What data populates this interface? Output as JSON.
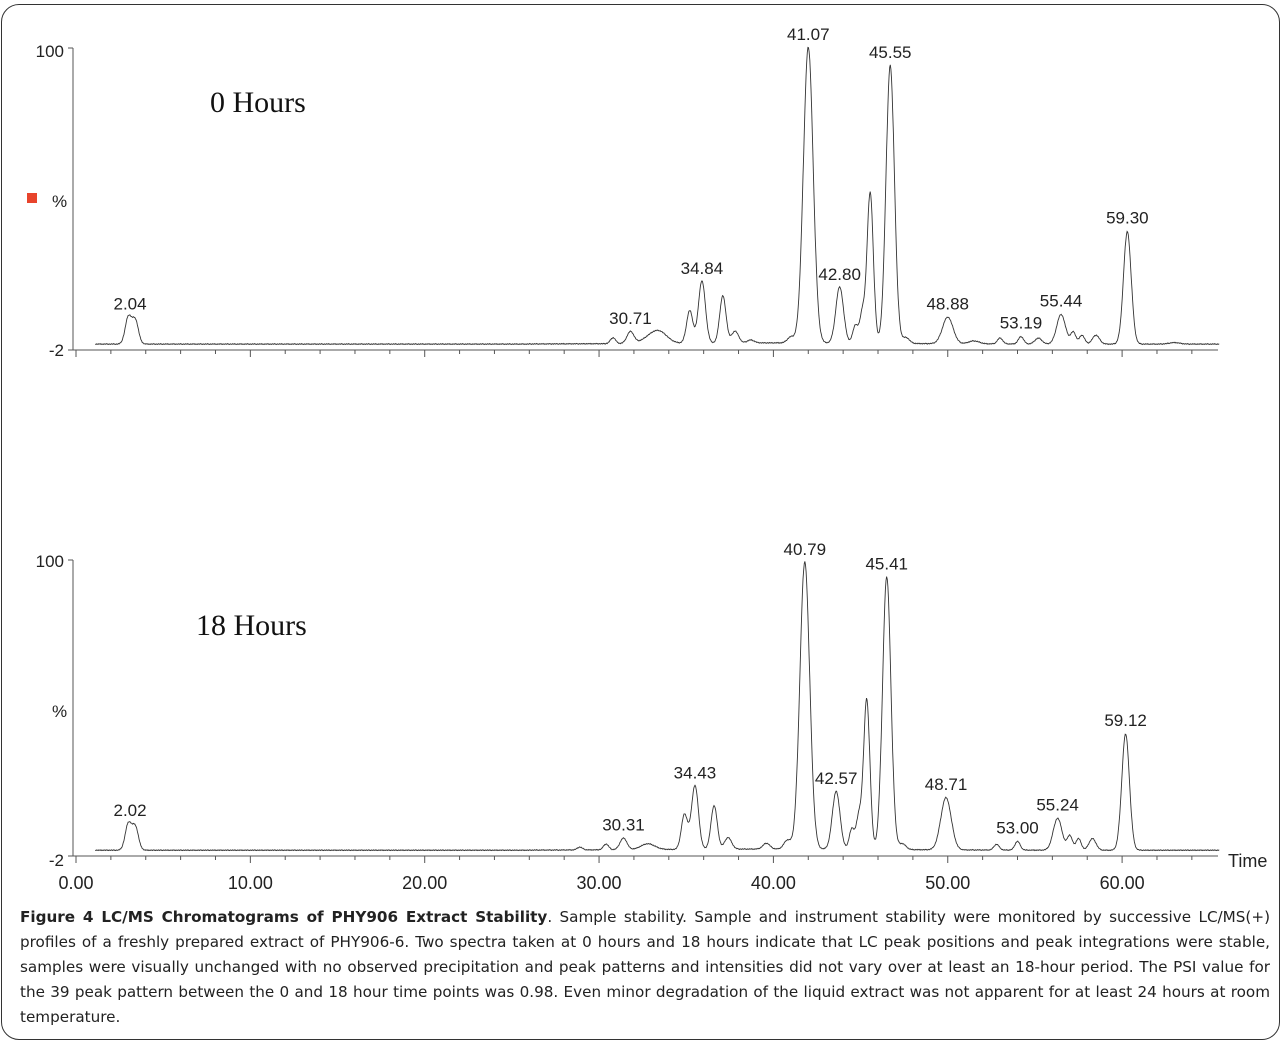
{
  "chart_data": [
    {
      "type": "line",
      "panel_label": "0 Hours",
      "ylabel": "%",
      "yticks": [
        "100",
        "-2"
      ],
      "ylim": [
        -2,
        100
      ],
      "xlim": [
        0,
        65.5
      ],
      "axis_color": "#555555",
      "trace_color": "#333333",
      "marker_color": "#e8442c",
      "peaks": [
        {
          "rt": 3.0,
          "height": 9,
          "width": 0.18
        },
        {
          "rt": 3.4,
          "height": 8,
          "width": 0.18
        },
        {
          "rt": 30.8,
          "height": 2,
          "width": 0.15
        },
        {
          "rt": 31.8,
          "height": 4,
          "width": 0.2
        },
        {
          "rt": 33.0,
          "height": 2,
          "width": 0.5
        },
        {
          "rt": 33.5,
          "height": 3,
          "width": 0.45
        },
        {
          "rt": 35.2,
          "height": 11,
          "width": 0.18
        },
        {
          "rt": 35.9,
          "height": 21,
          "width": 0.2
        },
        {
          "rt": 37.1,
          "height": 16,
          "width": 0.18
        },
        {
          "rt": 37.8,
          "height": 4,
          "width": 0.2
        },
        {
          "rt": 38.7,
          "height": 1,
          "width": 0.2
        },
        {
          "rt": 41.0,
          "height": 2,
          "width": 0.2
        },
        {
          "rt": 42.0,
          "height": 100,
          "width": 0.28
        },
        {
          "rt": 43.8,
          "height": 19,
          "width": 0.22
        },
        {
          "rt": 44.7,
          "height": 6,
          "width": 0.15
        },
        {
          "rt": 45.1,
          "height": 10,
          "width": 0.15
        },
        {
          "rt": 45.55,
          "height": 51,
          "width": 0.18
        },
        {
          "rt": 46.7,
          "height": 94,
          "width": 0.24
        },
        {
          "rt": 47.6,
          "height": 2,
          "width": 0.2
        },
        {
          "rt": 50.0,
          "height": 9,
          "width": 0.3
        },
        {
          "rt": 51.5,
          "height": 1,
          "width": 0.3
        },
        {
          "rt": 53.0,
          "height": 2,
          "width": 0.15
        },
        {
          "rt": 54.2,
          "height": 2.5,
          "width": 0.15
        },
        {
          "rt": 55.2,
          "height": 2,
          "width": 0.2
        },
        {
          "rt": 56.5,
          "height": 10,
          "width": 0.25
        },
        {
          "rt": 57.2,
          "height": 4,
          "width": 0.15
        },
        {
          "rt": 57.7,
          "height": 3,
          "width": 0.15
        },
        {
          "rt": 58.5,
          "height": 3,
          "width": 0.2
        },
        {
          "rt": 60.3,
          "height": 38,
          "width": 0.22
        },
        {
          "rt": 63.0,
          "height": 0.5,
          "width": 0.3
        }
      ],
      "annotations": [
        {
          "text": "2.04",
          "rt": 3.1,
          "height": 9
        },
        {
          "text": "30.71",
          "rt": 31.8,
          "height": 4
        },
        {
          "text": "34.84",
          "rt": 35.9,
          "height": 21
        },
        {
          "text": "41.07",
          "rt": 42.0,
          "height": 100
        },
        {
          "text": "42.80",
          "rt": 43.8,
          "height": 19
        },
        {
          "text": "45.55",
          "rt": 46.7,
          "height": 94
        },
        {
          "text": "48.88",
          "rt": 50.0,
          "height": 9
        },
        {
          "text": "53.19",
          "rt": 54.2,
          "height": 2.5
        },
        {
          "text": "55.44",
          "rt": 56.5,
          "height": 10
        },
        {
          "text": "59.30",
          "rt": 60.3,
          "height": 38
        }
      ]
    },
    {
      "type": "line",
      "panel_label": "18 Hours",
      "ylabel": "%",
      "yticks": [
        "100",
        "-2"
      ],
      "ylim": [
        -2,
        100
      ],
      "xlim": [
        0,
        65.5
      ],
      "xlabel": "Time",
      "xticks": [
        "0.00",
        "10.00",
        "20.00",
        "30.00",
        "40.00",
        "50.00",
        "60.00"
      ],
      "axis_color": "#555555",
      "trace_color": "#333333",
      "peaks": [
        {
          "rt": 3.0,
          "height": 9,
          "width": 0.18
        },
        {
          "rt": 3.4,
          "height": 8,
          "width": 0.18
        },
        {
          "rt": 28.9,
          "height": 1,
          "width": 0.15
        },
        {
          "rt": 30.4,
          "height": 2,
          "width": 0.15
        },
        {
          "rt": 31.4,
          "height": 4,
          "width": 0.2
        },
        {
          "rt": 32.8,
          "height": 2,
          "width": 0.4
        },
        {
          "rt": 34.9,
          "height": 12,
          "width": 0.18
        },
        {
          "rt": 35.5,
          "height": 22,
          "width": 0.2
        },
        {
          "rt": 36.6,
          "height": 15,
          "width": 0.18
        },
        {
          "rt": 37.4,
          "height": 4,
          "width": 0.2
        },
        {
          "rt": 39.6,
          "height": 2,
          "width": 0.2
        },
        {
          "rt": 40.8,
          "height": 3,
          "width": 0.2
        },
        {
          "rt": 41.8,
          "height": 99,
          "width": 0.28
        },
        {
          "rt": 43.6,
          "height": 20,
          "width": 0.22
        },
        {
          "rt": 44.5,
          "height": 7,
          "width": 0.15
        },
        {
          "rt": 44.9,
          "height": 11,
          "width": 0.15
        },
        {
          "rt": 45.35,
          "height": 52,
          "width": 0.18
        },
        {
          "rt": 46.5,
          "height": 94,
          "width": 0.24
        },
        {
          "rt": 47.4,
          "height": 2,
          "width": 0.2
        },
        {
          "rt": 49.9,
          "height": 18,
          "width": 0.3
        },
        {
          "rt": 52.8,
          "height": 2,
          "width": 0.15
        },
        {
          "rt": 54.0,
          "height": 3,
          "width": 0.15
        },
        {
          "rt": 56.3,
          "height": 11,
          "width": 0.25
        },
        {
          "rt": 57.0,
          "height": 5,
          "width": 0.15
        },
        {
          "rt": 57.5,
          "height": 4,
          "width": 0.15
        },
        {
          "rt": 58.3,
          "height": 4,
          "width": 0.2
        },
        {
          "rt": 60.2,
          "height": 40,
          "width": 0.22
        }
      ],
      "annotations": [
        {
          "text": "2.02",
          "rt": 3.1,
          "height": 9
        },
        {
          "text": "30.31",
          "rt": 31.4,
          "height": 4
        },
        {
          "text": "34.43",
          "rt": 35.5,
          "height": 22
        },
        {
          "text": "40.79",
          "rt": 41.8,
          "height": 99
        },
        {
          "text": "42.57",
          "rt": 43.6,
          "height": 20
        },
        {
          "text": "45.41",
          "rt": 46.5,
          "height": 94
        },
        {
          "text": "48.71",
          "rt": 49.9,
          "height": 18
        },
        {
          "text": "53.00",
          "rt": 54.0,
          "height": 3
        },
        {
          "text": "55.24",
          "rt": 56.3,
          "height": 11
        },
        {
          "text": "59.12",
          "rt": 60.2,
          "height": 40
        }
      ]
    }
  ],
  "caption": {
    "title": "Figure 4 LC/MS Chromatograms of PHY906 Extract Stability",
    "text": ". Sample stability. Sample and instrument stability were monitored by successive LC/MS(+) profiles of a freshly prepared extract of PHY906-6. Two spectra taken at 0 hours and 18 hours indicate that LC peak positions and peak integrations were stable, samples were visually unchanged with no observed precipitation and peak patterns and intensities did not vary over at least an 18-hour period. The PSI value for the 39 peak pattern between the 0 and 18 hour time points was 0.98. Even minor degradation of the liquid extract was not apparent for at least 24 hours at room temperature."
  }
}
